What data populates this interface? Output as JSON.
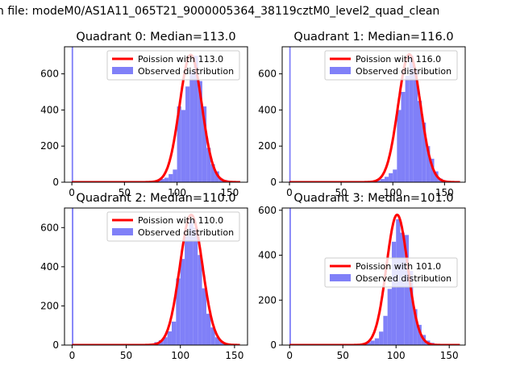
{
  "suptitle": "n file: modeM0/AS1A11_065T21_9000005364_38119cztM0_level2_quad_clean",
  "colors": {
    "hist": "#8080f8",
    "curve": "#ff0000",
    "axis": "#000000",
    "bg": "#ffffff"
  },
  "chart_data": [
    {
      "type": "bar+line",
      "title": "Quadrant 0: Median=113.0",
      "median": 113.0,
      "xlim": [
        -7,
        167
      ],
      "ylim": [
        0,
        750
      ],
      "xticks": [
        0,
        50,
        100,
        150
      ],
      "yticks": [
        0,
        200,
        400,
        600
      ],
      "legend": {
        "location": "top-right",
        "entries": [
          "Poission with 113.0",
          "Observed distribution"
        ]
      },
      "line": {
        "name": "Poission with 113.0",
        "mean": 113.0,
        "peak": 705,
        "sigma": 10.6,
        "x_range": [
          0,
          160
        ]
      },
      "histogram": {
        "name": "Observed distribution",
        "spike": {
          "x": 0.5,
          "height": 750
        },
        "bins_x": [
          72,
          76,
          80,
          84,
          88,
          92,
          96,
          100,
          104,
          108,
          112,
          116,
          120,
          124,
          128,
          132,
          136,
          140,
          144,
          148,
          152,
          156,
          160
        ],
        "heights": [
          2,
          4,
          10,
          18,
          25,
          45,
          70,
          420,
          400,
          530,
          610,
          700,
          560,
          420,
          190,
          100,
          60,
          20,
          12,
          5,
          3,
          2,
          1
        ]
      }
    },
    {
      "type": "bar+line",
      "title": "Quadrant 1: Median=116.0",
      "median": 116.0,
      "xlim": [
        -7,
        170
      ],
      "ylim": [
        0,
        750
      ],
      "xticks": [
        0,
        50,
        100,
        150
      ],
      "yticks": [
        0,
        200,
        400,
        600
      ],
      "legend": {
        "location": "top-right",
        "entries": [
          "Poission with 116.0",
          "Observed distribution"
        ]
      },
      "line": {
        "name": "Poission with 116.0",
        "mean": 116.0,
        "peak": 708,
        "sigma": 10.8,
        "x_range": [
          0,
          165
        ]
      },
      "histogram": {
        "name": "Observed distribution",
        "spike": {
          "x": 0.5,
          "height": 750
        },
        "bins_x": [
          76,
          80,
          84,
          88,
          92,
          96,
          100,
          104,
          108,
          112,
          116,
          120,
          124,
          128,
          132,
          136,
          140,
          144,
          148,
          152,
          156,
          160,
          164
        ],
        "heights": [
          2,
          4,
          10,
          18,
          30,
          50,
          70,
          400,
          500,
          590,
          700,
          620,
          450,
          330,
          200,
          130,
          60,
          20,
          10,
          5,
          3,
          2,
          1
        ]
      }
    },
    {
      "type": "bar+line",
      "title": "Quadrant 2: Median=110.0",
      "median": 110.0,
      "xlim": [
        -7,
        162
      ],
      "ylim": [
        0,
        700
      ],
      "xticks": [
        0,
        50,
        100,
        150
      ],
      "yticks": [
        0,
        200,
        400,
        600
      ],
      "legend": {
        "location": "top-right",
        "entries": [
          "Poission with 110.0",
          "Observed distribution"
        ]
      },
      "line": {
        "name": "Poission with 110.0",
        "mean": 110.0,
        "peak": 665,
        "sigma": 10.5,
        "x_range": [
          0,
          155
        ]
      },
      "histogram": {
        "name": "Observed distribution",
        "spike": {
          "x": 0.5,
          "height": 700
        },
        "bins_x": [
          64,
          68,
          72,
          76,
          80,
          84,
          88,
          92,
          96,
          100,
          104,
          108,
          112,
          116,
          120,
          124,
          128,
          132,
          136,
          140,
          144,
          148,
          152
        ],
        "heights": [
          2,
          4,
          8,
          15,
          25,
          40,
          70,
          120,
          340,
          440,
          560,
          640,
          600,
          460,
          290,
          160,
          90,
          40,
          20,
          8,
          4,
          2,
          1
        ]
      }
    },
    {
      "type": "bar+line",
      "title": "Quadrant 3: Median=101.0",
      "median": 101.0,
      "xlim": [
        -7,
        165
      ],
      "ylim": [
        0,
        610
      ],
      "xticks": [
        0,
        50,
        100,
        150
      ],
      "yticks": [
        0,
        200,
        400,
        600
      ],
      "legend": {
        "location": "center-right",
        "entries": [
          "Poission with 101.0",
          "Observed distribution"
        ]
      },
      "line": {
        "name": "Poission with 101.0",
        "mean": 101.0,
        "peak": 580,
        "sigma": 10.0,
        "x_range": [
          0,
          160
        ]
      },
      "histogram": {
        "name": "Observed distribution",
        "spike": {
          "x": 0.5,
          "height": 610
        },
        "bins_x": [
          60,
          64,
          68,
          72,
          76,
          80,
          84,
          88,
          92,
          96,
          100,
          104,
          108,
          112,
          116,
          120,
          124,
          128,
          132,
          136,
          140,
          144,
          148,
          152,
          156
        ],
        "heights": [
          2,
          4,
          8,
          12,
          20,
          30,
          60,
          130,
          250,
          460,
          560,
          500,
          490,
          330,
          160,
          90,
          45,
          20,
          10,
          5,
          3,
          2,
          1,
          1,
          1
        ]
      }
    }
  ]
}
